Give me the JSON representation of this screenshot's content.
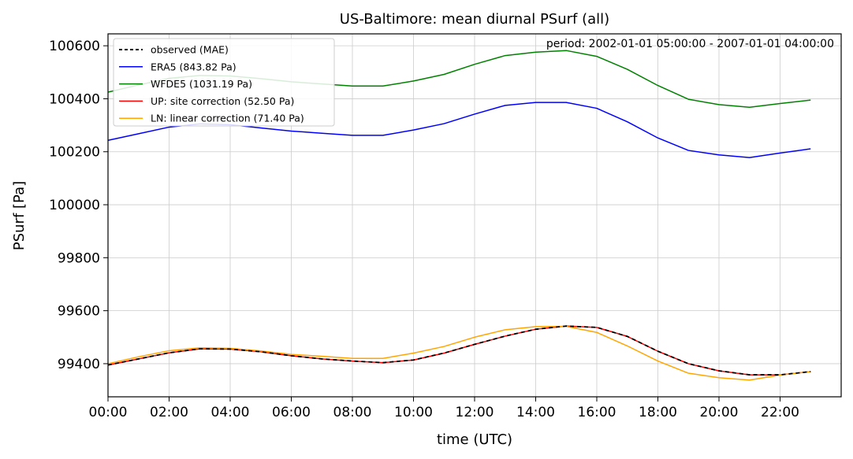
{
  "chart_data": {
    "type": "line",
    "title": "US-Baltimore: mean diurnal PSurf (all)",
    "xlabel": "time (UTC)",
    "ylabel": "PSurf [Pa]",
    "annotation": "period: 2002-01-01 05:00:00 - 2007-01-01 04:00:00",
    "x_hours": [
      0,
      1,
      2,
      3,
      4,
      5,
      6,
      7,
      8,
      9,
      10,
      11,
      12,
      13,
      14,
      15,
      16,
      17,
      18,
      19,
      20,
      21,
      22,
      23
    ],
    "xlim": [
      0,
      24
    ],
    "ylim": [
      99275,
      100645
    ],
    "x_ticks": [
      0,
      2,
      4,
      6,
      8,
      10,
      12,
      14,
      16,
      18,
      20,
      22
    ],
    "x_tick_labels": [
      "00:00",
      "02:00",
      "04:00",
      "06:00",
      "08:00",
      "10:00",
      "12:00",
      "14:00",
      "16:00",
      "18:00",
      "20:00",
      "22:00"
    ],
    "y_ticks": [
      99400,
      99600,
      99800,
      100000,
      100200,
      100400,
      100600
    ],
    "y_tick_labels": [
      "99400",
      "99600",
      "99800",
      "100000",
      "100200",
      "100400",
      "100600"
    ],
    "grid": true,
    "legend_position": "top-left",
    "series": [
      {
        "name": "ERA5 (843.82 Pa)",
        "color": "#0000ff",
        "style": "solid",
        "values": [
          100243,
          100268,
          100293,
          100305,
          100302,
          100290,
          100278,
          100270,
          100262,
          100262,
          100282,
          100306,
          100342,
          100375,
          100386,
          100386,
          100364,
          100313,
          100252,
          100205,
          100188,
          100178,
          100195,
          100211
        ]
      },
      {
        "name": "WFDE5 (1031.19 Pa)",
        "color": "#008000",
        "style": "solid",
        "values": [
          100425,
          100452,
          100477,
          100488,
          100486,
          100476,
          100464,
          100456,
          100448,
          100448,
          100467,
          100492,
          100530,
          100563,
          100576,
          100582,
          100560,
          100511,
          100450,
          100398,
          100378,
          100368,
          100382,
          100395
        ]
      },
      {
        "name": "UP: site correction (52.50 Pa)",
        "color": "#ff0000",
        "style": "solid",
        "values": [
          99395,
          99418,
          99441,
          99456,
          99455,
          99445,
          99430,
          99418,
          99410,
          99404,
          99414,
          99440,
          99473,
          99504,
          99530,
          99542,
          99537,
          99503,
          99447,
          99400,
          99373,
          99358,
          99358,
          99370
        ]
      },
      {
        "name": "LN: linear correction (71.40 Pa)",
        "color": "#ffa500",
        "style": "solid",
        "values": [
          99400,
          99426,
          99449,
          99460,
          99458,
          99448,
          99435,
          99428,
          99420,
          99420,
          99440,
          99465,
          99500,
          99528,
          99540,
          99541,
          99518,
          99467,
          99410,
          99364,
          99347,
          99338,
          99357,
          99370
        ]
      },
      {
        "name": "observed (MAE)",
        "color": "#000000",
        "style": "dashed",
        "values": [
          99395,
          99418,
          99441,
          99456,
          99455,
          99445,
          99430,
          99418,
          99410,
          99404,
          99414,
          99440,
          99473,
          99504,
          99530,
          99542,
          99537,
          99503,
          99447,
          99400,
          99373,
          99358,
          99358,
          99370
        ]
      }
    ],
    "legend_order": [
      "observed (MAE)",
      "ERA5 (843.82 Pa)",
      "WFDE5 (1031.19 Pa)",
      "UP: site correction (52.50 Pa)",
      "LN: linear correction (71.40 Pa)"
    ]
  }
}
